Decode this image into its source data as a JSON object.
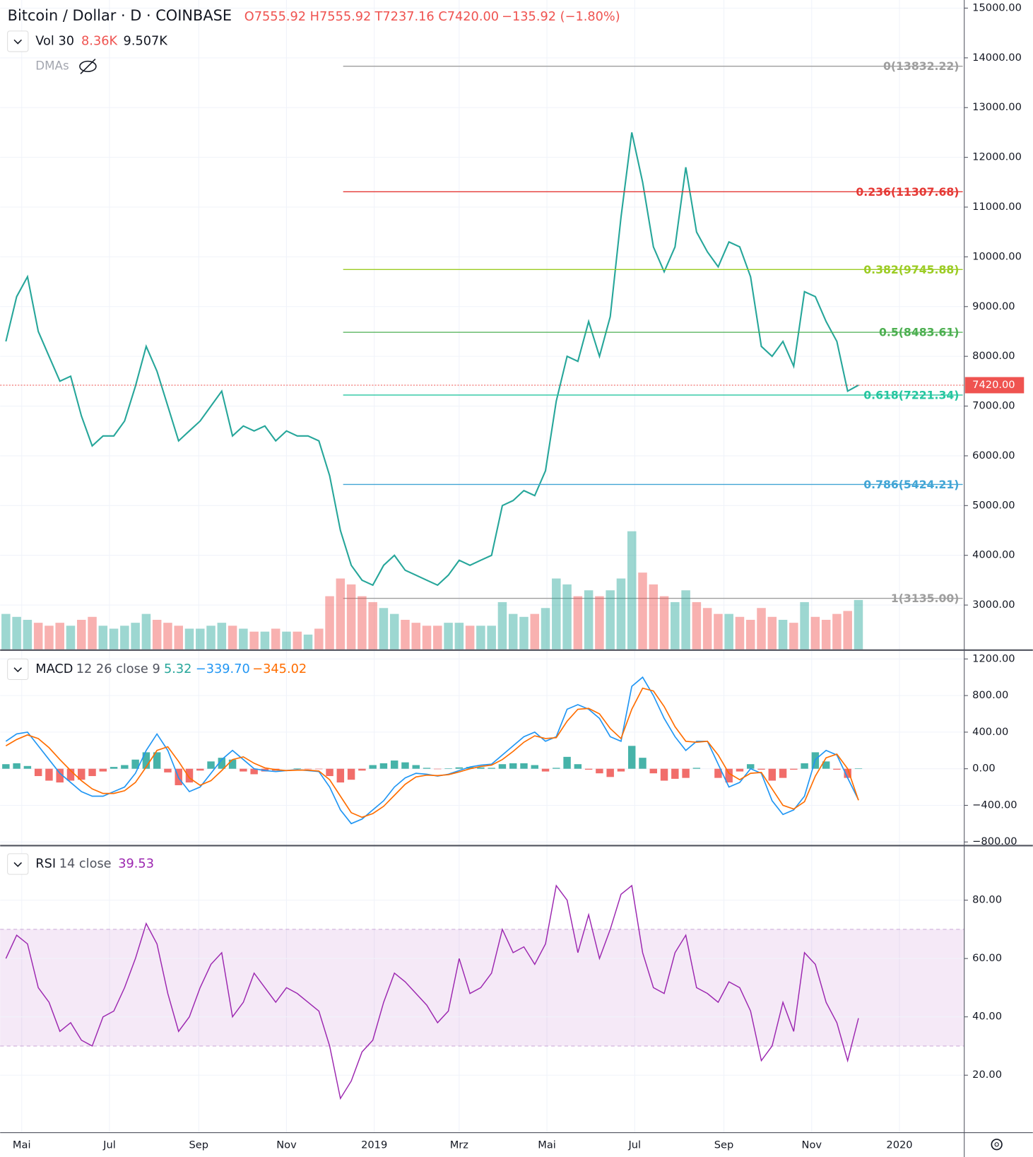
{
  "header": {
    "symbol": "Bitcoin / Dollar · D · COINBASE",
    "quote": [
      "O7555.92",
      "H7555.92",
      "T7237.16",
      "C7420.00",
      "−135.92 (−1.80%)"
    ],
    "volume_legend": {
      "name": "Vol 30",
      "values": [
        "8.36K",
        "9.507K"
      ]
    },
    "dmas": "DMAs",
    "macd_legend": {
      "name": "MACD",
      "params": "12 26 close 9",
      "values": [
        "5.32",
        "−339.70",
        "−345.02"
      ]
    },
    "rsi_legend": {
      "name": "RSI",
      "params": "14 close",
      "value": "39.53"
    }
  },
  "chart_data": [
    {
      "type": "line",
      "color": "#26a69a",
      "x": [
        0,
        7.5,
        15,
        22.5,
        30,
        37.5,
        45,
        52.5,
        60,
        67.5,
        75,
        82.5,
        90,
        97.5,
        105,
        112.5,
        120,
        127.5,
        135,
        142.5,
        150,
        157.5,
        165,
        172.5,
        180,
        187.5,
        195,
        202.5,
        210,
        217.5,
        225,
        232.5,
        240,
        247.5,
        255,
        262.5,
        270,
        277.5,
        285,
        292.5,
        300,
        307.5,
        315,
        322.5,
        330,
        337.5,
        345,
        352.5,
        360,
        367.5,
        375,
        382.5,
        390,
        397.5,
        405,
        412.5,
        420,
        427.5,
        435,
        442.5,
        450,
        457.5,
        465,
        472.5,
        480,
        487.5,
        495,
        502.5,
        510,
        517.5,
        525,
        532.5,
        540,
        547.5,
        555,
        562.5,
        570,
        577.5,
        585,
        592.5
      ],
      "values": [
        8300,
        9200,
        9600,
        8500,
        8000,
        7500,
        7600,
        6800,
        6200,
        6400,
        6400,
        6700,
        7400,
        8200,
        7700,
        7000,
        6300,
        6500,
        6700,
        7000,
        7300,
        6400,
        6600,
        6500,
        6600,
        6300,
        6500,
        6400,
        6400,
        6300,
        5600,
        4500,
        3800,
        3500,
        3400,
        3800,
        4000,
        3700,
        3600,
        3500,
        3400,
        3600,
        3900,
        3800,
        3900,
        4000,
        5000,
        5100,
        5300,
        5200,
        5700,
        7100,
        8000,
        7900,
        8700,
        8000,
        8800,
        10800,
        12500,
        11500,
        10200,
        9700,
        10200,
        11800,
        10500,
        10100,
        9800,
        10300,
        10200,
        9600,
        8200,
        8000,
        8300,
        7800,
        9300,
        9200,
        8700,
        8300,
        7300,
        7420
      ],
      "xlim": [
        -4,
        665
      ],
      "xticks": [
        {
          "value": 11,
          "label": "Mai"
        },
        {
          "value": 72,
          "label": "Jul"
        },
        {
          "value": 134,
          "label": "Sep"
        },
        {
          "value": 195,
          "label": "Nov"
        },
        {
          "value": 256,
          "label": "2019"
        },
        {
          "value": 315,
          "label": "Mrz"
        },
        {
          "value": 376,
          "label": "Mai"
        },
        {
          "value": 437,
          "label": "Jul"
        },
        {
          "value": 499,
          "label": "Sep"
        },
        {
          "value": 560,
          "label": "Nov"
        },
        {
          "value": 621,
          "label": "2020"
        }
      ],
      "ylim": [
        2110,
        15163
      ],
      "yticks": [
        {
          "value": 15000,
          "label": "15000.00"
        },
        {
          "value": 14000,
          "label": "14000.00"
        },
        {
          "value": 13000,
          "label": "13000.00"
        },
        {
          "value": 12000,
          "label": "12000.00"
        },
        {
          "value": 11000,
          "label": "11000.00"
        },
        {
          "value": 10000,
          "label": "10000.00"
        },
        {
          "value": 9000,
          "label": "9000.00"
        },
        {
          "value": 8000,
          "label": "8000.00"
        },
        {
          "value": 7000,
          "label": "7000.00"
        },
        {
          "value": 6000,
          "label": "6000.00"
        },
        {
          "value": 5000,
          "label": "5000.00"
        },
        {
          "value": 4000,
          "label": "4000.00"
        },
        {
          "value": 3000,
          "label": "3000.00"
        }
      ],
      "grid": true,
      "fib_levels": [
        {
          "value": 13832.22,
          "label": "0(13832.22)",
          "color": "#9e9e9e"
        },
        {
          "value": 11307.68,
          "label": "0.236(11307.68)",
          "color": "#e53935"
        },
        {
          "value": 9745.88,
          "label": "0.382(9745.88)",
          "color": "#9ccc24"
        },
        {
          "value": 8483.61,
          "label": "0.5(8483.61)",
          "color": "#4caf50"
        },
        {
          "value": 7221.34,
          "label": "0.618(7221.34)",
          "color": "#26c6a0"
        },
        {
          "value": 5424.21,
          "label": "0.786(5424.21)",
          "color": "#42a5d5"
        },
        {
          "value": 3135.0,
          "label": "1(3135.00)",
          "color": "#9e9e9e"
        }
      ],
      "last_price": {
        "value": 7420,
        "label": "7420.00",
        "color": "#ef5350"
      }
    },
    {
      "type": "bar",
      "colors": [
        "#26a69a",
        "#ef5350"
      ],
      "ylim": [
        0,
        40000
      ],
      "values": [
        6000,
        5500,
        5000,
        4500,
        4000,
        4500,
        4000,
        5000,
        5500,
        4000,
        3500,
        4000,
        4500,
        6000,
        5000,
        4500,
        4000,
        3500,
        3500,
        4000,
        4500,
        4000,
        3500,
        3000,
        3000,
        3500,
        3000,
        3000,
        2500,
        3500,
        9000,
        12000,
        11000,
        9000,
        8000,
        7000,
        6000,
        5000,
        4500,
        4000,
        4000,
        4500,
        4500,
        4000,
        4000,
        4000,
        8000,
        6000,
        5500,
        6000,
        7000,
        12000,
        11000,
        9000,
        10000,
        9000,
        10000,
        12000,
        20000,
        13000,
        11000,
        9000,
        8000,
        10000,
        8000,
        7000,
        6000,
        6000,
        5500,
        5000,
        7000,
        5500,
        5000,
        4500,
        8000,
        5500,
        5000,
        6000,
        6500,
        8360
      ]
    },
    {
      "type": "macd",
      "ylim": [
        -832,
        1289
      ],
      "yticks": [
        {
          "value": 1200,
          "label": "1200.00"
        },
        {
          "value": 800,
          "label": "800.00"
        },
        {
          "value": 400,
          "label": "400.00"
        },
        {
          "value": 0,
          "label": "0.00"
        },
        {
          "value": -400,
          "label": "−400.00"
        },
        {
          "value": -800,
          "label": "−800.00"
        }
      ],
      "series": [
        {
          "name": "MACD",
          "color": "#2196f3",
          "values": [
            300,
            380,
            400,
            250,
            100,
            -50,
            -150,
            -250,
            -300,
            -300,
            -250,
            -200,
            -50,
            200,
            380,
            200,
            -100,
            -250,
            -200,
            -50,
            100,
            200,
            100,
            0,
            -20,
            -30,
            -20,
            -10,
            -20,
            -30,
            -200,
            -450,
            -600,
            -550,
            -450,
            -350,
            -200,
            -100,
            -50,
            -60,
            -80,
            -60,
            -20,
            20,
            40,
            50,
            150,
            250,
            350,
            400,
            300,
            350,
            650,
            700,
            650,
            550,
            350,
            300,
            900,
            1000,
            800,
            550,
            350,
            200,
            300,
            300,
            50,
            -200,
            -150,
            0,
            -50,
            -350,
            -500,
            -450,
            -300,
            100,
            200,
            150,
            -100,
            -340
          ]
        },
        {
          "name": "Signal",
          "color": "#ff6d00",
          "values": [
            250,
            320,
            370,
            330,
            230,
            100,
            -20,
            -130,
            -220,
            -270,
            -270,
            -240,
            -150,
            20,
            200,
            240,
            80,
            -100,
            -180,
            -130,
            -20,
            100,
            130,
            60,
            10,
            -10,
            -20,
            -15,
            -15,
            -25,
            -120,
            -300,
            -480,
            -530,
            -490,
            -410,
            -290,
            -170,
            -90,
            -70,
            -75,
            -65,
            -35,
            0,
            25,
            40,
            100,
            190,
            290,
            360,
            330,
            340,
            520,
            650,
            660,
            600,
            440,
            330,
            650,
            880,
            850,
            680,
            460,
            300,
            290,
            300,
            150,
            -50,
            -120,
            -50,
            -40,
            -220,
            -400,
            -440,
            -360,
            -80,
            120,
            160,
            0,
            -345
          ]
        }
      ],
      "histogram": {
        "colors": [
          "#26a69a",
          "#ef5350"
        ],
        "values": [
          50,
          60,
          30,
          -80,
          -130,
          -150,
          -130,
          -120,
          -80,
          -30,
          20,
          40,
          100,
          180,
          180,
          -40,
          -180,
          -150,
          -20,
          80,
          120,
          100,
          -30,
          -60,
          -30,
          -20,
          0,
          5,
          -5,
          -5,
          -80,
          -150,
          -120,
          -20,
          40,
          60,
          90,
          70,
          40,
          10,
          -5,
          5,
          15,
          20,
          15,
          10,
          50,
          60,
          60,
          40,
          -30,
          10,
          130,
          50,
          -10,
          -50,
          -90,
          -30,
          250,
          120,
          -50,
          -130,
          -110,
          -100,
          10,
          0,
          -100,
          -150,
          -30,
          50,
          -10,
          -130,
          -100,
          -10,
          60,
          180,
          80,
          -10,
          -100,
          5
        ]
      }
    },
    {
      "type": "rsi",
      "color": "#9c27b0",
      "ylim": [
        0.3,
        98.2
      ],
      "band": [
        30,
        70
      ],
      "yticks": [
        {
          "value": 80,
          "label": "80.00"
        },
        {
          "value": 60,
          "label": "60.00"
        },
        {
          "value": 40,
          "label": "40.00"
        },
        {
          "value": 20,
          "label": "20.00"
        }
      ],
      "values": [
        60,
        68,
        65,
        50,
        45,
        35,
        38,
        32,
        30,
        40,
        42,
        50,
        60,
        72,
        65,
        48,
        35,
        40,
        50,
        58,
        62,
        40,
        45,
        55,
        50,
        45,
        50,
        48,
        45,
        42,
        30,
        12,
        18,
        28,
        32,
        45,
        55,
        52,
        48,
        44,
        38,
        42,
        60,
        48,
        50,
        55,
        70,
        62,
        64,
        58,
        65,
        85,
        80,
        62,
        75,
        60,
        70,
        82,
        85,
        62,
        50,
        48,
        62,
        68,
        50,
        48,
        45,
        52,
        50,
        42,
        25,
        30,
        45,
        35,
        62,
        58,
        45,
        38,
        25,
        39.53
      ]
    }
  ]
}
